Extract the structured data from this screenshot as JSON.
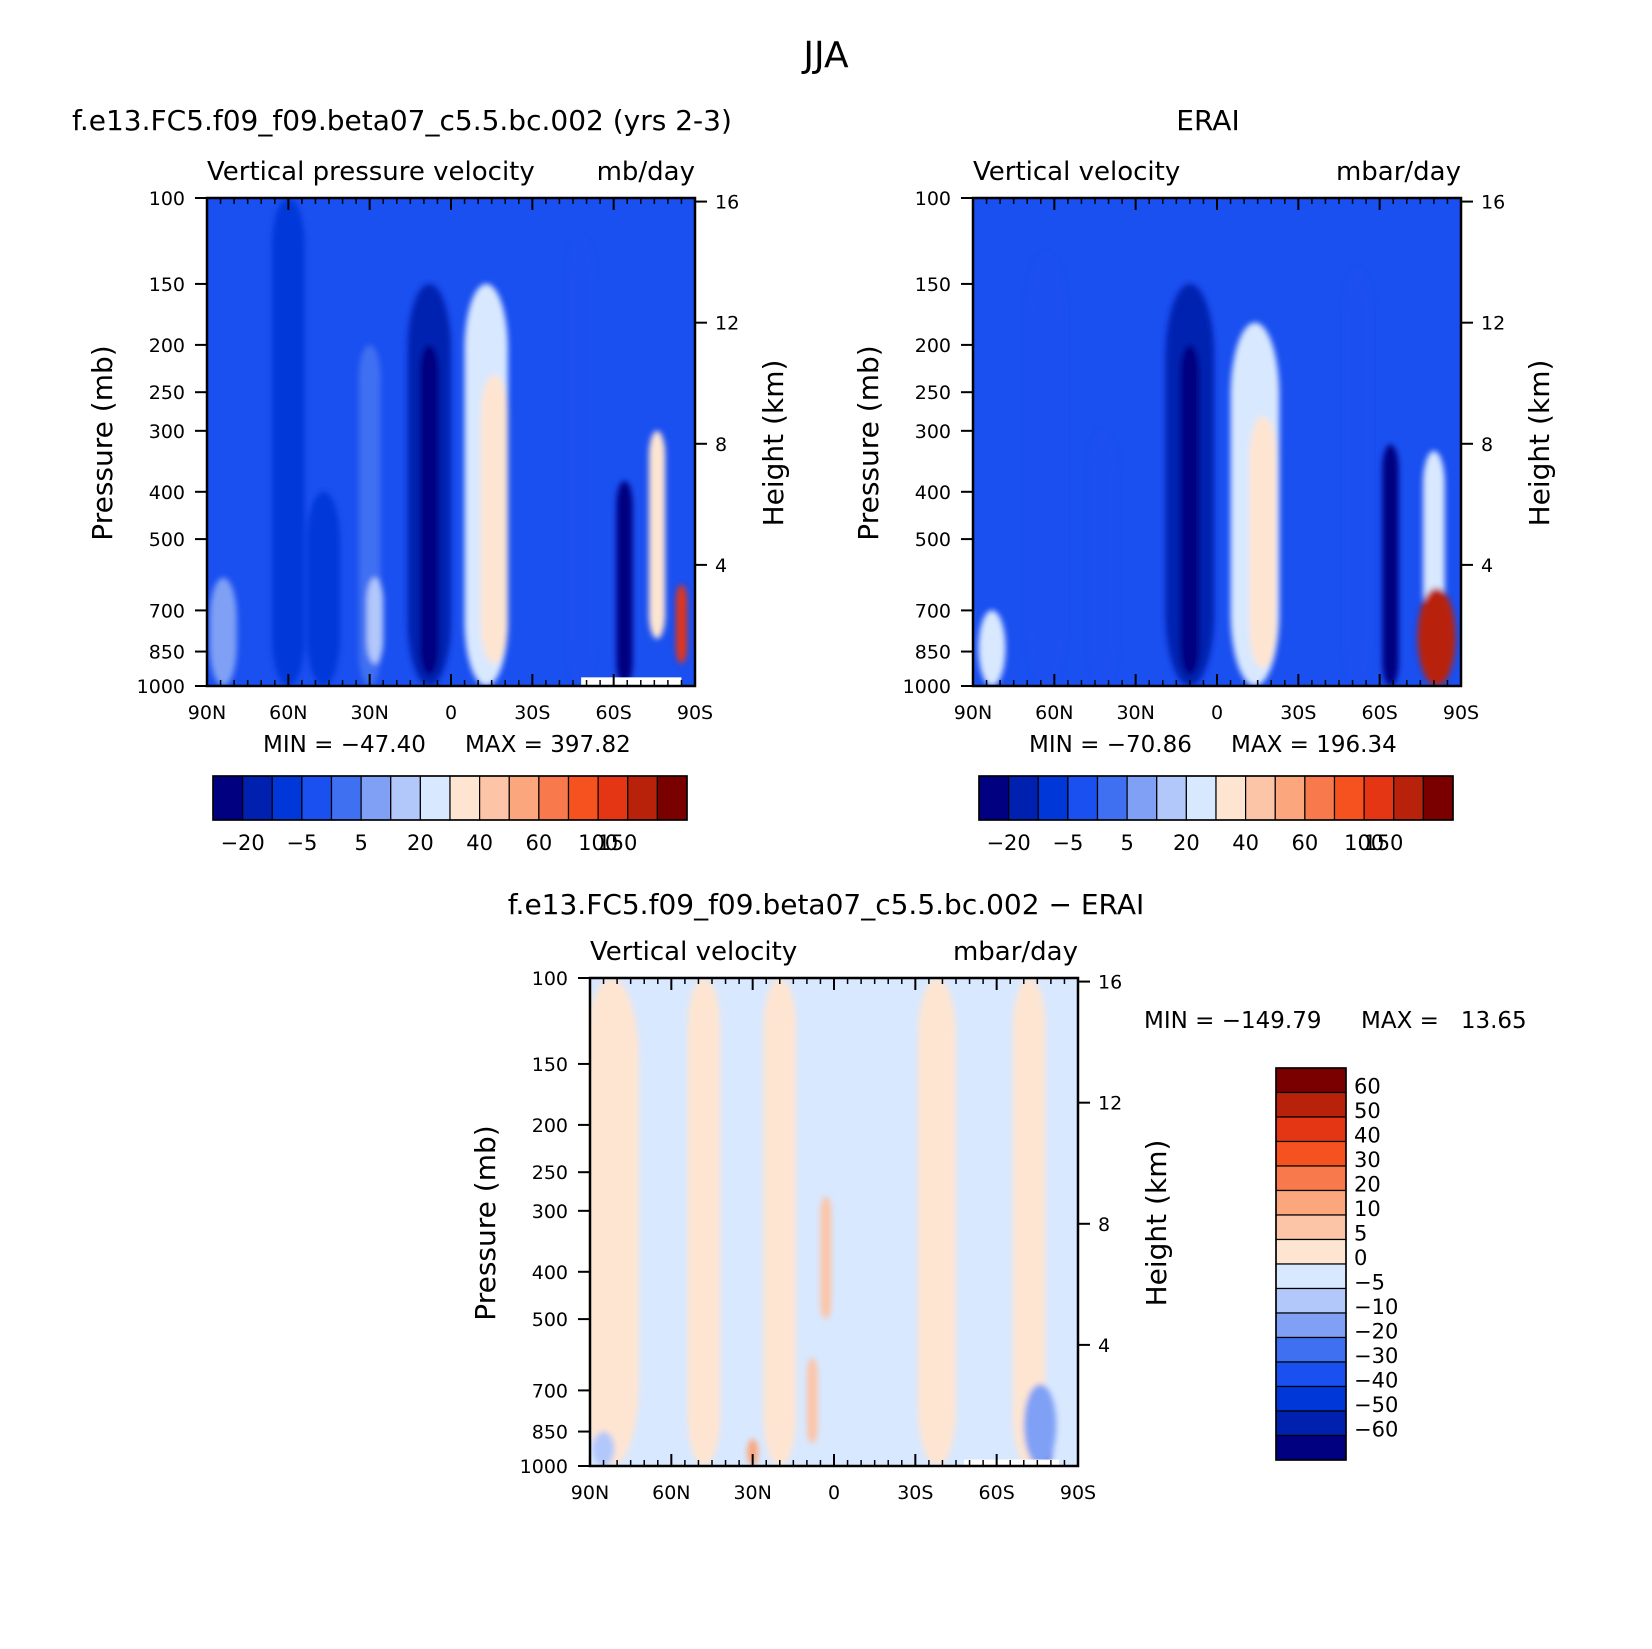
{
  "figure": {
    "title": "JJA",
    "colors": {
      "plot_scale": [
        "#000080",
        "#0020b0",
        "#0037d9",
        "#1a4ff0",
        "#4070f2",
        "#7fa0f5",
        "#b2c8fb",
        "#d8e8ff",
        "#fee5d2",
        "#fdc5a8",
        "#fba67c",
        "#f87a4c",
        "#f5521f",
        "#e43514",
        "#b8220b",
        "#7a0000"
      ],
      "diff_scale": [
        "#000080",
        "#0020b0",
        "#0037d9",
        "#1a4ff0",
        "#4070f2",
        "#7fa0f5",
        "#b2c8fb",
        "#d8e8ff",
        "#fee5d2",
        "#fdc5a8",
        "#fba67c",
        "#f87a4c",
        "#f5521f",
        "#e43514",
        "#b8220b",
        "#7a0000"
      ]
    }
  },
  "chart_data": [
    {
      "id": "model",
      "type": "heatmap",
      "title": "f.e13.FC5.f09_f09.beta07_c5.5.bc.002 (yrs 2-3)",
      "subtitle_left": "Vertical pressure velocity",
      "subtitle_right": "mb/day",
      "ylabel": "Pressure (mb)",
      "ylabel_right": "Height (km)",
      "x_ticks": [
        "90N",
        "60N",
        "30N",
        "0",
        "30S",
        "60S",
        "90S"
      ],
      "y_ticks": [
        "100",
        "150",
        "200",
        "250",
        "300",
        "400",
        "500",
        "700",
        "850",
        "1000"
      ],
      "y_ticks_right": [
        "16",
        "12",
        "8",
        "4"
      ],
      "xlim": [
        90,
        -90
      ],
      "ylim": [
        1000,
        100
      ],
      "y_scale": "log",
      "min_label": "MIN = −47.40",
      "max_label": "MAX = 397.82",
      "min": -47.4,
      "max": 397.82,
      "colorbar_labels": [
        "−20",
        "−5",
        "5",
        "20",
        "40",
        "60",
        "100",
        "150"
      ],
      "colorbar_levels": [
        -20,
        -15,
        -10,
        -5,
        0,
        5,
        10,
        20,
        30,
        40,
        50,
        60,
        80,
        100,
        150
      ],
      "fields": [
        {
          "lat": 84,
          "width": 5,
          "p_top": 600,
          "p_bot": 1000,
          "value": 2
        },
        {
          "lat": 60,
          "width": 6,
          "p_top": 100,
          "p_bot": 1000,
          "value": -12
        },
        {
          "lat": 47,
          "width": 6,
          "p_top": 400,
          "p_bot": 1000,
          "value": -15
        },
        {
          "lat": 30,
          "width": 4,
          "p_top": 200,
          "p_bot": 1000,
          "value": -2
        },
        {
          "lat": 28,
          "width": 3,
          "p_top": 600,
          "p_bot": 900,
          "value": 8
        },
        {
          "lat": 8,
          "width": 8,
          "p_top": 150,
          "p_bot": 1000,
          "value": -18
        },
        {
          "lat": 8,
          "width": 3.5,
          "p_top": 200,
          "p_bot": 950,
          "value": -35
        },
        {
          "lat": -13,
          "width": 8,
          "p_top": 150,
          "p_bot": 1000,
          "value": 12
        },
        {
          "lat": -16,
          "width": 5,
          "p_top": 230,
          "p_bot": 900,
          "value": 25
        },
        {
          "lat": -48,
          "width": 5,
          "p_top": 120,
          "p_bot": 1000,
          "value": -8
        },
        {
          "lat": -64,
          "width": 3,
          "p_top": 380,
          "p_bot": 1000,
          "value": -25
        },
        {
          "lat": -76,
          "width": 3,
          "p_top": 300,
          "p_bot": 800,
          "value": 25
        },
        {
          "lat": -85,
          "width": 2,
          "p_top": 620,
          "p_bot": 900,
          "value": 80
        }
      ],
      "missing": {
        "lat_from": -48,
        "lat_to": -85,
        "p_top": 960
      }
    },
    {
      "id": "obs",
      "type": "heatmap",
      "title": "ERAI",
      "subtitle_left": "Vertical velocity",
      "subtitle_right": "mbar/day",
      "ylabel": "Pressure (mb)",
      "ylabel_right": "Height (km)",
      "x_ticks": [
        "90N",
        "60N",
        "30N",
        "0",
        "30S",
        "60S",
        "90S"
      ],
      "y_ticks": [
        "100",
        "150",
        "200",
        "250",
        "300",
        "400",
        "500",
        "700",
        "850",
        "1000"
      ],
      "y_ticks_right": [
        "16",
        "12",
        "8",
        "4"
      ],
      "xlim": [
        90,
        -90
      ],
      "ylim": [
        1000,
        100
      ],
      "y_scale": "log",
      "min_label": "MIN = −70.86",
      "max_label": "MAX = 196.34",
      "min": -70.86,
      "max": 196.34,
      "colorbar_labels": [
        "−20",
        "−5",
        "5",
        "20",
        "40",
        "60",
        "100",
        "150"
      ],
      "colorbar_levels": [
        -20,
        -15,
        -10,
        -5,
        0,
        5,
        10,
        20,
        30,
        40,
        50,
        60,
        80,
        100,
        150
      ],
      "fields": [
        {
          "lat": 83,
          "width": 5,
          "p_top": 700,
          "p_bot": 1000,
          "value": 10
        },
        {
          "lat": 63,
          "width": 7,
          "p_top": 130,
          "p_bot": 1000,
          "value": -10
        },
        {
          "lat": 42,
          "width": 5,
          "p_top": 300,
          "p_bot": 1000,
          "value": -8
        },
        {
          "lat": 10,
          "width": 9,
          "p_top": 150,
          "p_bot": 1000,
          "value": -18
        },
        {
          "lat": 10,
          "width": 3.5,
          "p_top": 200,
          "p_bot": 950,
          "value": -35
        },
        {
          "lat": -14,
          "width": 9,
          "p_top": 180,
          "p_bot": 1000,
          "value": 12
        },
        {
          "lat": -17,
          "width": 5,
          "p_top": 280,
          "p_bot": 920,
          "value": 25
        },
        {
          "lat": -52,
          "width": 5,
          "p_top": 140,
          "p_bot": 1000,
          "value": -8
        },
        {
          "lat": -64,
          "width": 3,
          "p_top": 320,
          "p_bot": 1000,
          "value": -25
        },
        {
          "lat": -80,
          "width": 4,
          "p_top": 330,
          "p_bot": 750,
          "value": 15
        },
        {
          "lat": -81,
          "width": 7,
          "p_top": 630,
          "p_bot": 1000,
          "value": 100
        }
      ]
    },
    {
      "id": "diff",
      "type": "heatmap",
      "title": "f.e13.FC5.f09_f09.beta07_c5.5.bc.002 − ERAI",
      "subtitle_left": "Vertical velocity",
      "subtitle_right": "mbar/day",
      "ylabel": "Pressure (mb)",
      "ylabel_right": "Height (km)",
      "x_ticks": [
        "90N",
        "60N",
        "30N",
        "0",
        "30S",
        "60S",
        "90S"
      ],
      "y_ticks": [
        "100",
        "150",
        "200",
        "250",
        "300",
        "400",
        "500",
        "700",
        "850",
        "1000"
      ],
      "y_ticks_right": [
        "16",
        "12",
        "8",
        "4"
      ],
      "xlim": [
        90,
        -90
      ],
      "ylim": [
        1000,
        100
      ],
      "y_scale": "log",
      "min_label": "MIN = −149.79",
      "max_label": "MAX =   13.65",
      "min": -149.79,
      "max": 13.65,
      "colorbar_labels": [
        "60",
        "50",
        "40",
        "30",
        "20",
        "10",
        "5",
        "0",
        "−5",
        "−10",
        "−20",
        "−30",
        "−40",
        "−50",
        "−60"
      ],
      "colorbar_levels": [
        -60,
        -50,
        -40,
        -30,
        -20,
        -10,
        -5,
        0,
        5,
        10,
        20,
        30,
        40,
        50,
        60
      ],
      "fields": [
        {
          "lat": 82,
          "width": 10,
          "p_top": 100,
          "p_bot": 1000,
          "value": 2
        },
        {
          "lat": 48,
          "width": 6,
          "p_top": 100,
          "p_bot": 1000,
          "value": 2
        },
        {
          "lat": 20,
          "width": 6,
          "p_top": 100,
          "p_bot": 1000,
          "value": 2
        },
        {
          "lat": 3,
          "width": 2,
          "p_top": 280,
          "p_bot": 500,
          "value": 8
        },
        {
          "lat": -38,
          "width": 7,
          "p_top": 100,
          "p_bot": 1000,
          "value": 2
        },
        {
          "lat": -72,
          "width": 6,
          "p_top": 100,
          "p_bot": 1000,
          "value": 2
        },
        {
          "lat": 8,
          "width": 2,
          "p_top": 600,
          "p_bot": 900,
          "value": 8
        },
        {
          "lat": 30,
          "width": 2,
          "p_top": 880,
          "p_bot": 1000,
          "value": 12
        },
        {
          "lat": 85,
          "width": 4,
          "p_top": 850,
          "p_bot": 1000,
          "value": -10
        },
        {
          "lat": -78,
          "width": 3,
          "p_top": 720,
          "p_bot": 1000,
          "value": -45
        },
        {
          "lat": -76,
          "width": 6,
          "p_top": 680,
          "p_bot": 1000,
          "value": -20
        }
      ],
      "missing": {
        "lat_from": -48,
        "lat_to": -83,
        "p_top": 970
      }
    }
  ]
}
